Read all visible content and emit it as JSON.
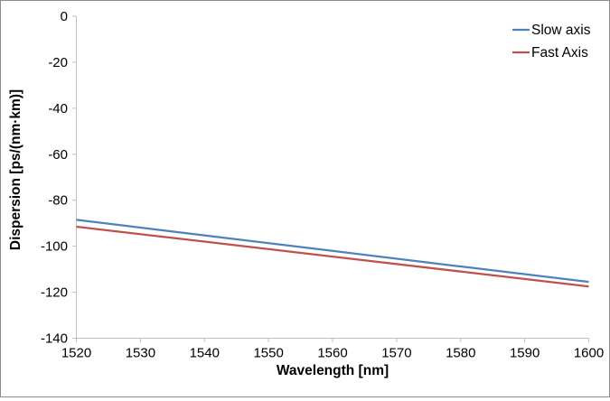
{
  "chart_data": {
    "type": "line",
    "title": "",
    "xlabel": "Wavelength [nm]",
    "ylabel": "Dispersion [ps/(nm·km)]",
    "xlim": [
      1520,
      1600
    ],
    "ylim": [
      -140,
      0
    ],
    "xticks": [
      1520,
      1530,
      1540,
      1550,
      1560,
      1570,
      1580,
      1590,
      1600
    ],
    "yticks": [
      0,
      -20,
      -40,
      -60,
      -80,
      -100,
      -120,
      -140
    ],
    "grid": false,
    "legend_position": "top-right",
    "series": [
      {
        "name": "Slow axis",
        "color": "#4F81BD",
        "x": [
          1520,
          1540,
          1560,
          1580,
          1600
        ],
        "values": [
          -88.5,
          -95.3,
          -102.0,
          -108.8,
          -115.5
        ]
      },
      {
        "name": "Fast Axis",
        "color": "#C0504D",
        "x": [
          1520,
          1540,
          1560,
          1580,
          1600
        ],
        "values": [
          -91.5,
          -98.0,
          -104.5,
          -111.0,
          -117.5
        ]
      }
    ],
    "axis_color": "#BFBFBF",
    "text_color": "#000000",
    "frame_border_color": "#8C8C8C",
    "background_color": "#FFFFFF"
  }
}
